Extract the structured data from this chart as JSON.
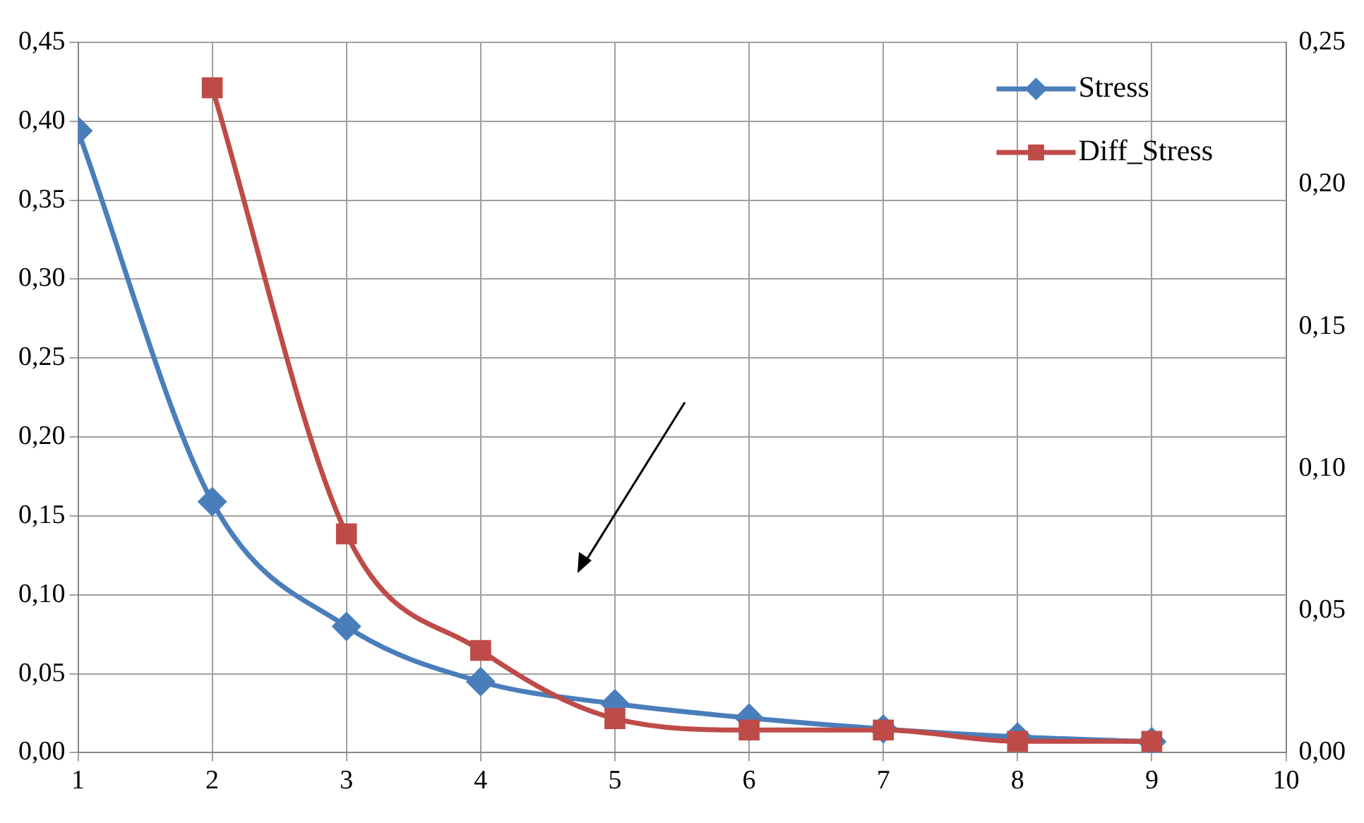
{
  "chart_data": {
    "type": "line",
    "x": [
      1,
      2,
      3,
      4,
      5,
      6,
      7,
      8,
      9
    ],
    "series": [
      {
        "name": "Stress",
        "color": "#4a7ebb",
        "marker": "diamond",
        "values": [
          0.394,
          0.159,
          0.08,
          0.045,
          0.031,
          0.022,
          0.015,
          0.01,
          0.007
        ]
      },
      {
        "name": "Diff_Stress",
        "color": "#be4b48",
        "marker": "square",
        "axis": "y2",
        "values": [
          null,
          0.234,
          0.077,
          0.036,
          0.012,
          0.008,
          0.008,
          0.004,
          0.004
        ]
      }
    ],
    "xlim": [
      1,
      10
    ],
    "xticks": [
      1,
      2,
      3,
      4,
      5,
      6,
      7,
      8,
      9,
      10
    ],
    "ylim": [
      0,
      0.45
    ],
    "yticks": [
      {
        "value": 0,
        "label": "0,00"
      },
      {
        "value": 0.05,
        "label": "0,05"
      },
      {
        "value": 0.1,
        "label": "0,10"
      },
      {
        "value": 0.15,
        "label": "0,15"
      },
      {
        "value": 0.2,
        "label": "0,20"
      },
      {
        "value": 0.25,
        "label": "0,25"
      },
      {
        "value": 0.3,
        "label": "0,30"
      },
      {
        "value": 0.35,
        "label": "0,35"
      },
      {
        "value": 0.4,
        "label": "0,40"
      },
      {
        "value": 0.45,
        "label": "0,45"
      }
    ],
    "y2lim": [
      0,
      0.25
    ],
    "y2ticks": [
      {
        "value": 0,
        "label": "0,00"
      },
      {
        "value": 0.05,
        "label": "0,05"
      },
      {
        "value": 0.1,
        "label": "0,10"
      },
      {
        "value": 0.15,
        "label": "0,15"
      },
      {
        "value": 0.2,
        "label": "0,20"
      },
      {
        "value": 0.25,
        "label": "0,25"
      }
    ],
    "grid": true,
    "legend": "top right",
    "line_style": "solid"
  }
}
